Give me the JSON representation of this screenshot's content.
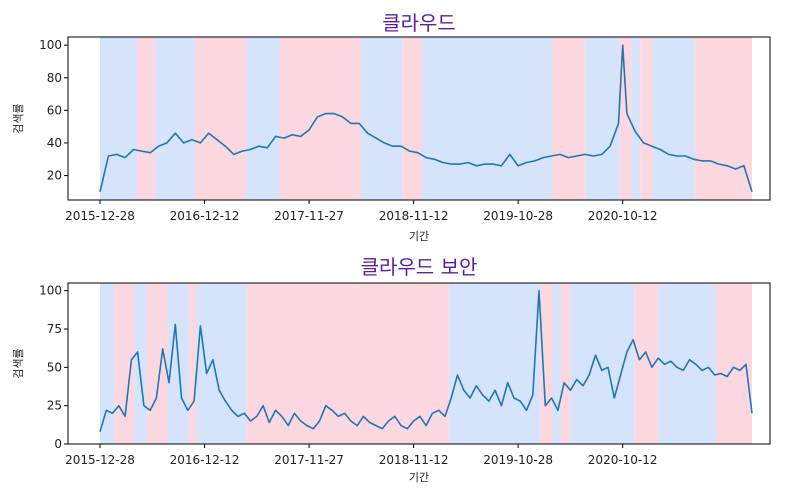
{
  "colors": {
    "line": "#1f77b4",
    "band_blue": "#d5e3fb",
    "band_pink": "#fbd7e0",
    "title": "#5a1fa0"
  },
  "chart_data": [
    {
      "type": "line",
      "title": "클라우드",
      "xlabel": "기간",
      "ylabel": "검색률",
      "x_start": "2015-12-28",
      "x_end": "2021-12-19",
      "x_ticks": [
        "2015-12-28",
        "2016-12-12",
        "2017-11-27",
        "2018-11-12",
        "2019-10-28",
        "2020-10-12"
      ],
      "y_ticks": [
        20,
        40,
        60,
        80,
        100
      ],
      "ylim": [
        5,
        105
      ],
      "bands": [
        {
          "start": "2015-12-28",
          "end": "2016-05-01",
          "color": "blue"
        },
        {
          "start": "2016-05-01",
          "end": "2016-07-01",
          "color": "pink"
        },
        {
          "start": "2016-07-01",
          "end": "2016-11-10",
          "color": "blue"
        },
        {
          "start": "2016-11-10",
          "end": "2017-05-01",
          "color": "pink"
        },
        {
          "start": "2017-05-01",
          "end": "2017-08-20",
          "color": "blue"
        },
        {
          "start": "2017-08-20",
          "end": "2018-05-20",
          "color": "pink"
        },
        {
          "start": "2018-05-20",
          "end": "2018-10-05",
          "color": "blue"
        },
        {
          "start": "2018-10-05",
          "end": "2018-12-10",
          "color": "pink"
        },
        {
          "start": "2018-12-10",
          "end": "2020-02-20",
          "color": "blue"
        },
        {
          "start": "2020-02-20",
          "end": "2020-06-10",
          "color": "pink"
        },
        {
          "start": "2020-06-10",
          "end": "2020-10-01",
          "color": "blue"
        },
        {
          "start": "2020-10-01",
          "end": "2020-11-10",
          "color": "pink"
        },
        {
          "start": "2020-11-10",
          "end": "2020-12-10",
          "color": "blue"
        },
        {
          "start": "2020-12-10",
          "end": "2021-01-20",
          "color": "pink"
        },
        {
          "start": "2021-01-20",
          "end": "2021-06-10",
          "color": "blue"
        },
        {
          "start": "2021-06-10",
          "end": "2021-12-19",
          "color": "pink"
        }
      ],
      "series": [
        {
          "x": [
            "2015-12-28",
            "2016-01-25",
            "2016-02-22",
            "2016-03-21",
            "2016-04-18",
            "2016-05-16",
            "2016-06-13",
            "2016-07-11",
            "2016-08-08",
            "2016-09-05",
            "2016-10-03",
            "2016-10-31",
            "2016-11-28",
            "2016-12-26",
            "2017-01-23",
            "2017-02-20",
            "2017-03-20",
            "2017-04-17",
            "2017-05-15",
            "2017-06-12",
            "2017-07-10",
            "2017-08-07",
            "2017-09-04",
            "2017-10-02",
            "2017-10-30",
            "2017-11-27",
            "2017-12-25",
            "2018-01-22",
            "2018-02-19",
            "2018-03-19",
            "2018-04-16",
            "2018-05-14",
            "2018-06-11",
            "2018-07-09",
            "2018-08-06",
            "2018-09-03",
            "2018-10-01",
            "2018-10-29",
            "2018-11-26",
            "2018-12-24",
            "2019-01-21",
            "2019-02-18",
            "2019-03-18",
            "2019-04-15",
            "2019-05-13",
            "2019-06-10",
            "2019-07-08",
            "2019-08-05",
            "2019-09-02",
            "2019-09-30",
            "2019-10-28",
            "2019-11-25",
            "2019-12-23",
            "2020-01-20",
            "2020-02-17",
            "2020-03-16",
            "2020-04-13",
            "2020-05-11",
            "2020-06-08",
            "2020-07-06",
            "2020-08-03",
            "2020-08-31",
            "2020-09-28",
            "2020-10-12",
            "2020-10-26",
            "2020-11-23",
            "2020-12-21",
            "2021-01-18",
            "2021-02-15",
            "2021-03-15",
            "2021-04-12",
            "2021-05-10",
            "2021-06-07",
            "2021-07-05",
            "2021-08-02",
            "2021-08-30",
            "2021-09-27",
            "2021-10-25",
            "2021-11-22",
            "2021-12-19"
          ],
          "values": [
            10,
            32,
            33,
            31,
            36,
            35,
            34,
            38,
            40,
            46,
            40,
            42,
            40,
            46,
            42,
            38,
            33,
            35,
            36,
            38,
            37,
            44,
            43,
            45,
            44,
            48,
            56,
            58,
            58,
            56,
            52,
            52,
            46,
            43,
            40,
            38,
            38,
            35,
            34,
            31,
            30,
            28,
            27,
            27,
            28,
            26,
            27,
            27,
            26,
            33,
            26,
            28,
            29,
            31,
            32,
            33,
            31,
            32,
            33,
            32,
            33,
            38,
            52,
            100,
            58,
            47,
            40,
            38,
            36,
            33,
            32,
            32,
            30,
            29,
            29,
            27,
            26,
            24,
            26,
            10
          ]
        }
      ]
    },
    {
      "type": "line",
      "title": "클라우드 보안",
      "xlabel": "기간",
      "ylabel": "검색률",
      "x_start": "2015-12-28",
      "x_end": "2021-12-19",
      "x_ticks": [
        "2015-12-28",
        "2016-12-12",
        "2017-11-27",
        "2018-11-12",
        "2019-10-28",
        "2020-10-12"
      ],
      "y_ticks": [
        0,
        25,
        50,
        75,
        100
      ],
      "ylim": [
        0,
        105
      ],
      "bands": [
        {
          "start": "2015-12-28",
          "end": "2016-02-15",
          "color": "blue"
        },
        {
          "start": "2016-02-15",
          "end": "2016-04-20",
          "color": "pink"
        },
        {
          "start": "2016-04-20",
          "end": "2016-06-01",
          "color": "blue"
        },
        {
          "start": "2016-06-01",
          "end": "2016-08-10",
          "color": "pink"
        },
        {
          "start": "2016-08-10",
          "end": "2016-10-20",
          "color": "blue"
        },
        {
          "start": "2016-10-20",
          "end": "2016-11-15",
          "color": "pink"
        },
        {
          "start": "2016-11-15",
          "end": "2017-05-01",
          "color": "blue"
        },
        {
          "start": "2017-05-01",
          "end": "2019-03-10",
          "color": "pink"
        },
        {
          "start": "2019-03-10",
          "end": "2020-01-10",
          "color": "blue"
        },
        {
          "start": "2020-01-10",
          "end": "2020-02-20",
          "color": "pink"
        },
        {
          "start": "2020-02-20",
          "end": "2020-03-20",
          "color": "blue"
        },
        {
          "start": "2020-03-20",
          "end": "2020-04-20",
          "color": "pink"
        },
        {
          "start": "2020-04-20",
          "end": "2020-11-20",
          "color": "blue"
        },
        {
          "start": "2020-11-20",
          "end": "2021-02-10",
          "color": "pink"
        },
        {
          "start": "2021-02-10",
          "end": "2021-08-20",
          "color": "blue"
        },
        {
          "start": "2021-08-20",
          "end": "2021-12-19",
          "color": "pink"
        }
      ],
      "series": [
        {
          "x": [
            "2015-12-28",
            "2016-01-18",
            "2016-02-08",
            "2016-02-29",
            "2016-03-21",
            "2016-04-11",
            "2016-05-02",
            "2016-05-23",
            "2016-06-13",
            "2016-07-04",
            "2016-07-25",
            "2016-08-15",
            "2016-09-05",
            "2016-09-26",
            "2016-10-17",
            "2016-11-07",
            "2016-11-28",
            "2016-12-19",
            "2017-01-09",
            "2017-01-30",
            "2017-02-20",
            "2017-03-13",
            "2017-04-03",
            "2017-04-24",
            "2017-05-15",
            "2017-06-05",
            "2017-06-26",
            "2017-07-17",
            "2017-08-07",
            "2017-08-28",
            "2017-09-18",
            "2017-10-09",
            "2017-10-30",
            "2017-11-20",
            "2017-12-11",
            "2018-01-01",
            "2018-01-22",
            "2018-02-12",
            "2018-03-05",
            "2018-03-26",
            "2018-04-16",
            "2018-05-07",
            "2018-05-28",
            "2018-06-18",
            "2018-07-09",
            "2018-07-30",
            "2018-08-20",
            "2018-09-10",
            "2018-10-01",
            "2018-10-22",
            "2018-11-12",
            "2018-12-03",
            "2018-12-24",
            "2019-01-14",
            "2019-02-04",
            "2019-02-25",
            "2019-03-18",
            "2019-04-08",
            "2019-04-29",
            "2019-05-20",
            "2019-06-10",
            "2019-07-01",
            "2019-07-22",
            "2019-08-12",
            "2019-09-02",
            "2019-09-23",
            "2019-10-14",
            "2019-11-04",
            "2019-11-25",
            "2019-12-16",
            "2020-01-06",
            "2020-01-27",
            "2020-02-17",
            "2020-03-09",
            "2020-03-30",
            "2020-04-20",
            "2020-05-11",
            "2020-06-01",
            "2020-06-22",
            "2020-07-13",
            "2020-08-03",
            "2020-08-24",
            "2020-09-14",
            "2020-10-05",
            "2020-10-26",
            "2020-11-16",
            "2020-12-07",
            "2020-12-28",
            "2021-01-18",
            "2021-02-08",
            "2021-03-01",
            "2021-03-22",
            "2021-04-12",
            "2021-05-03",
            "2021-05-24",
            "2021-06-14",
            "2021-07-05",
            "2021-07-26",
            "2021-08-16",
            "2021-09-06",
            "2021-09-27",
            "2021-10-18",
            "2021-11-08",
            "2021-11-29",
            "2021-12-19"
          ],
          "values": [
            8,
            22,
            20,
            25,
            18,
            55,
            60,
            25,
            22,
            30,
            62,
            40,
            78,
            30,
            22,
            28,
            77,
            46,
            55,
            35,
            28,
            22,
            18,
            20,
            15,
            18,
            25,
            14,
            22,
            18,
            12,
            20,
            15,
            12,
            10,
            15,
            25,
            22,
            18,
            20,
            15,
            12,
            18,
            14,
            12,
            10,
            15,
            18,
            12,
            10,
            15,
            18,
            12,
            20,
            22,
            18,
            30,
            45,
            35,
            30,
            38,
            32,
            28,
            35,
            25,
            40,
            30,
            28,
            22,
            32,
            100,
            25,
            30,
            22,
            40,
            35,
            42,
            38,
            45,
            58,
            48,
            50,
            30,
            45,
            60,
            68,
            55,
            60,
            50,
            56,
            52,
            54,
            50,
            48,
            55,
            52,
            48,
            50,
            45,
            46,
            44,
            50,
            48,
            52,
            20
          ]
        }
      ]
    }
  ]
}
